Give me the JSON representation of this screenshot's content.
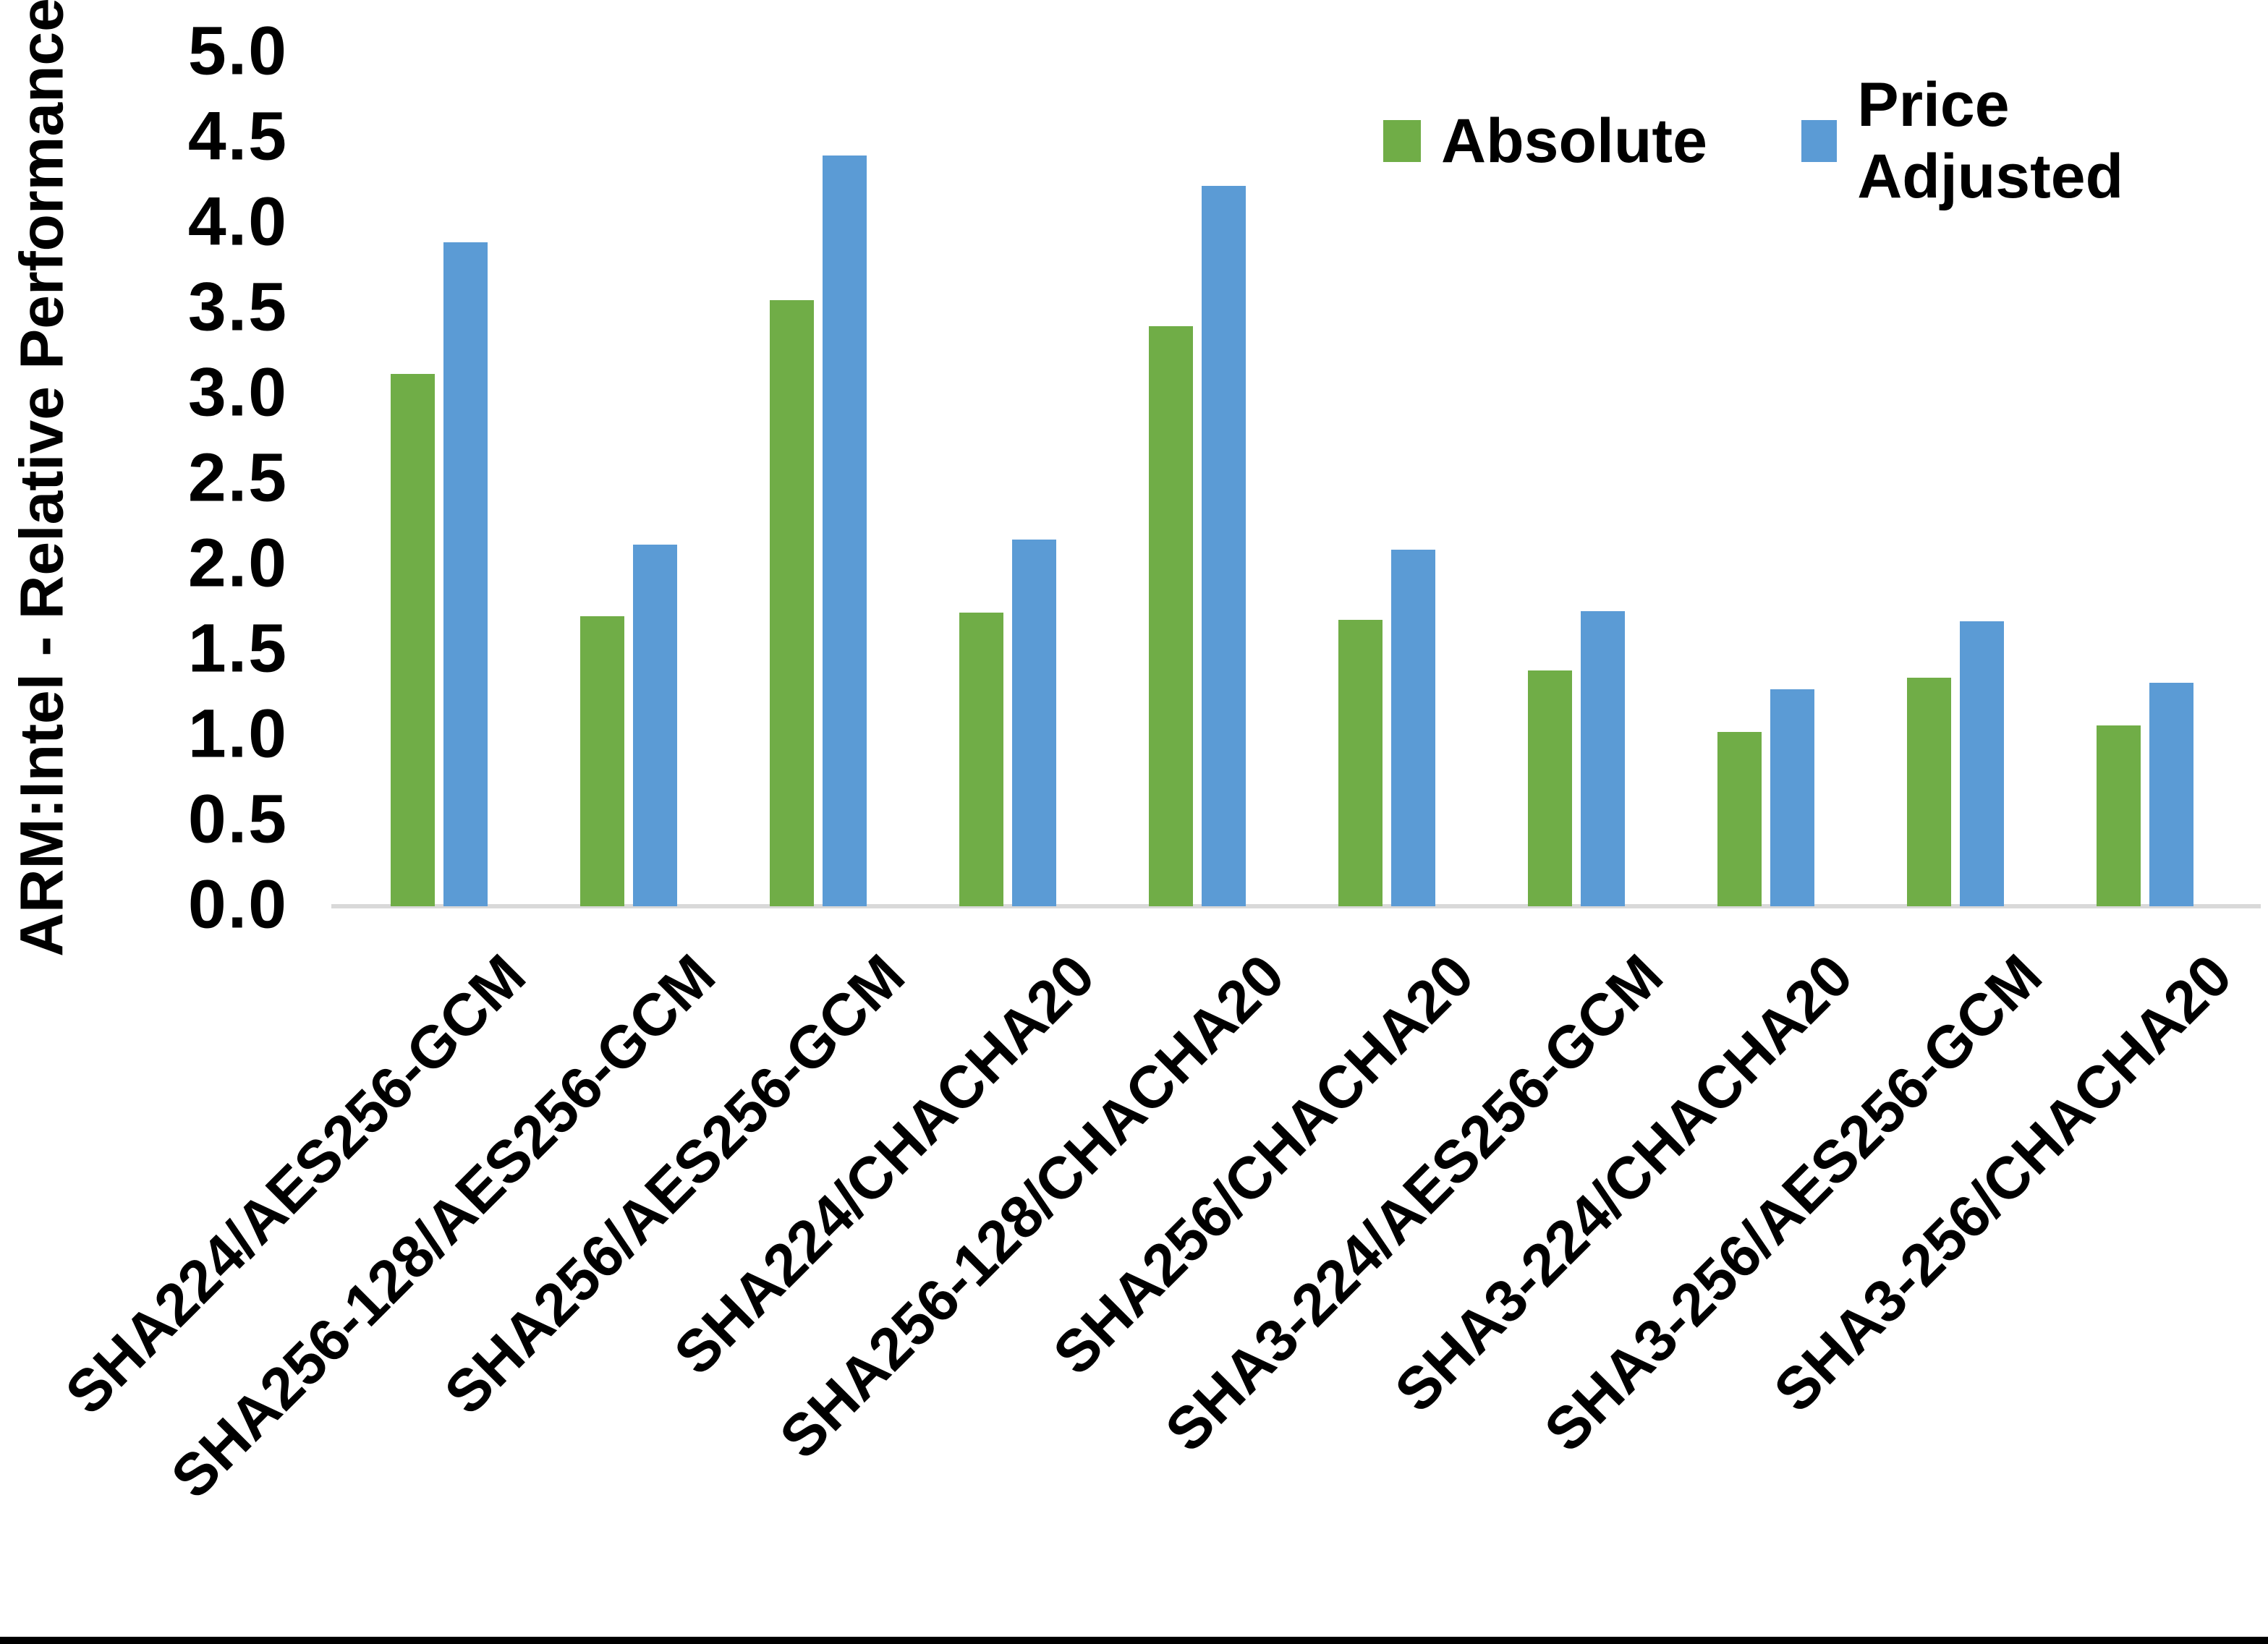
{
  "chart_data": {
    "type": "bar",
    "title": "",
    "xlabel": "",
    "ylabel": "ARM:Intel - Relative Performance",
    "ylim": [
      0.0,
      5.0
    ],
    "ytick_step": 0.5,
    "y_tick_labels": [
      "0.0",
      "0.5",
      "1.0",
      "1.5",
      "2.0",
      "2.5",
      "3.0",
      "3.5",
      "4.0",
      "4.5",
      "5.0"
    ],
    "grid": false,
    "legend_position": "top-right",
    "axis_line_color": "#D9D9D9",
    "categories": [
      "SHA224/AES256-GCM",
      "SHA256-128/AES256-GCM",
      "SHA256/AES256-GCM",
      "SHA224/CHACHA20",
      "SHA256-128/CHACHA20",
      "SHA256/CHACHA20",
      "SHA3-224/AES256-GCM",
      "SHA3-224/CHACHA20",
      "SHA3-256/AES256-GCM",
      "SHA3-256/CHACHA20"
    ],
    "series": [
      {
        "name": "Absolute",
        "color": "#70AD47",
        "values": [
          3.12,
          1.7,
          3.55,
          1.72,
          3.4,
          1.68,
          1.38,
          1.02,
          1.34,
          1.06
        ]
      },
      {
        "name": "Price Adjusted",
        "color": "#5B9BD5",
        "values": [
          3.89,
          2.12,
          4.4,
          2.15,
          4.22,
          2.09,
          1.73,
          1.27,
          1.67,
          1.31
        ]
      }
    ]
  },
  "colors": {
    "background": "#FFFFFF",
    "text": "#000000",
    "axis_line": "#D9D9D9",
    "bottom_edge": "#000000"
  }
}
